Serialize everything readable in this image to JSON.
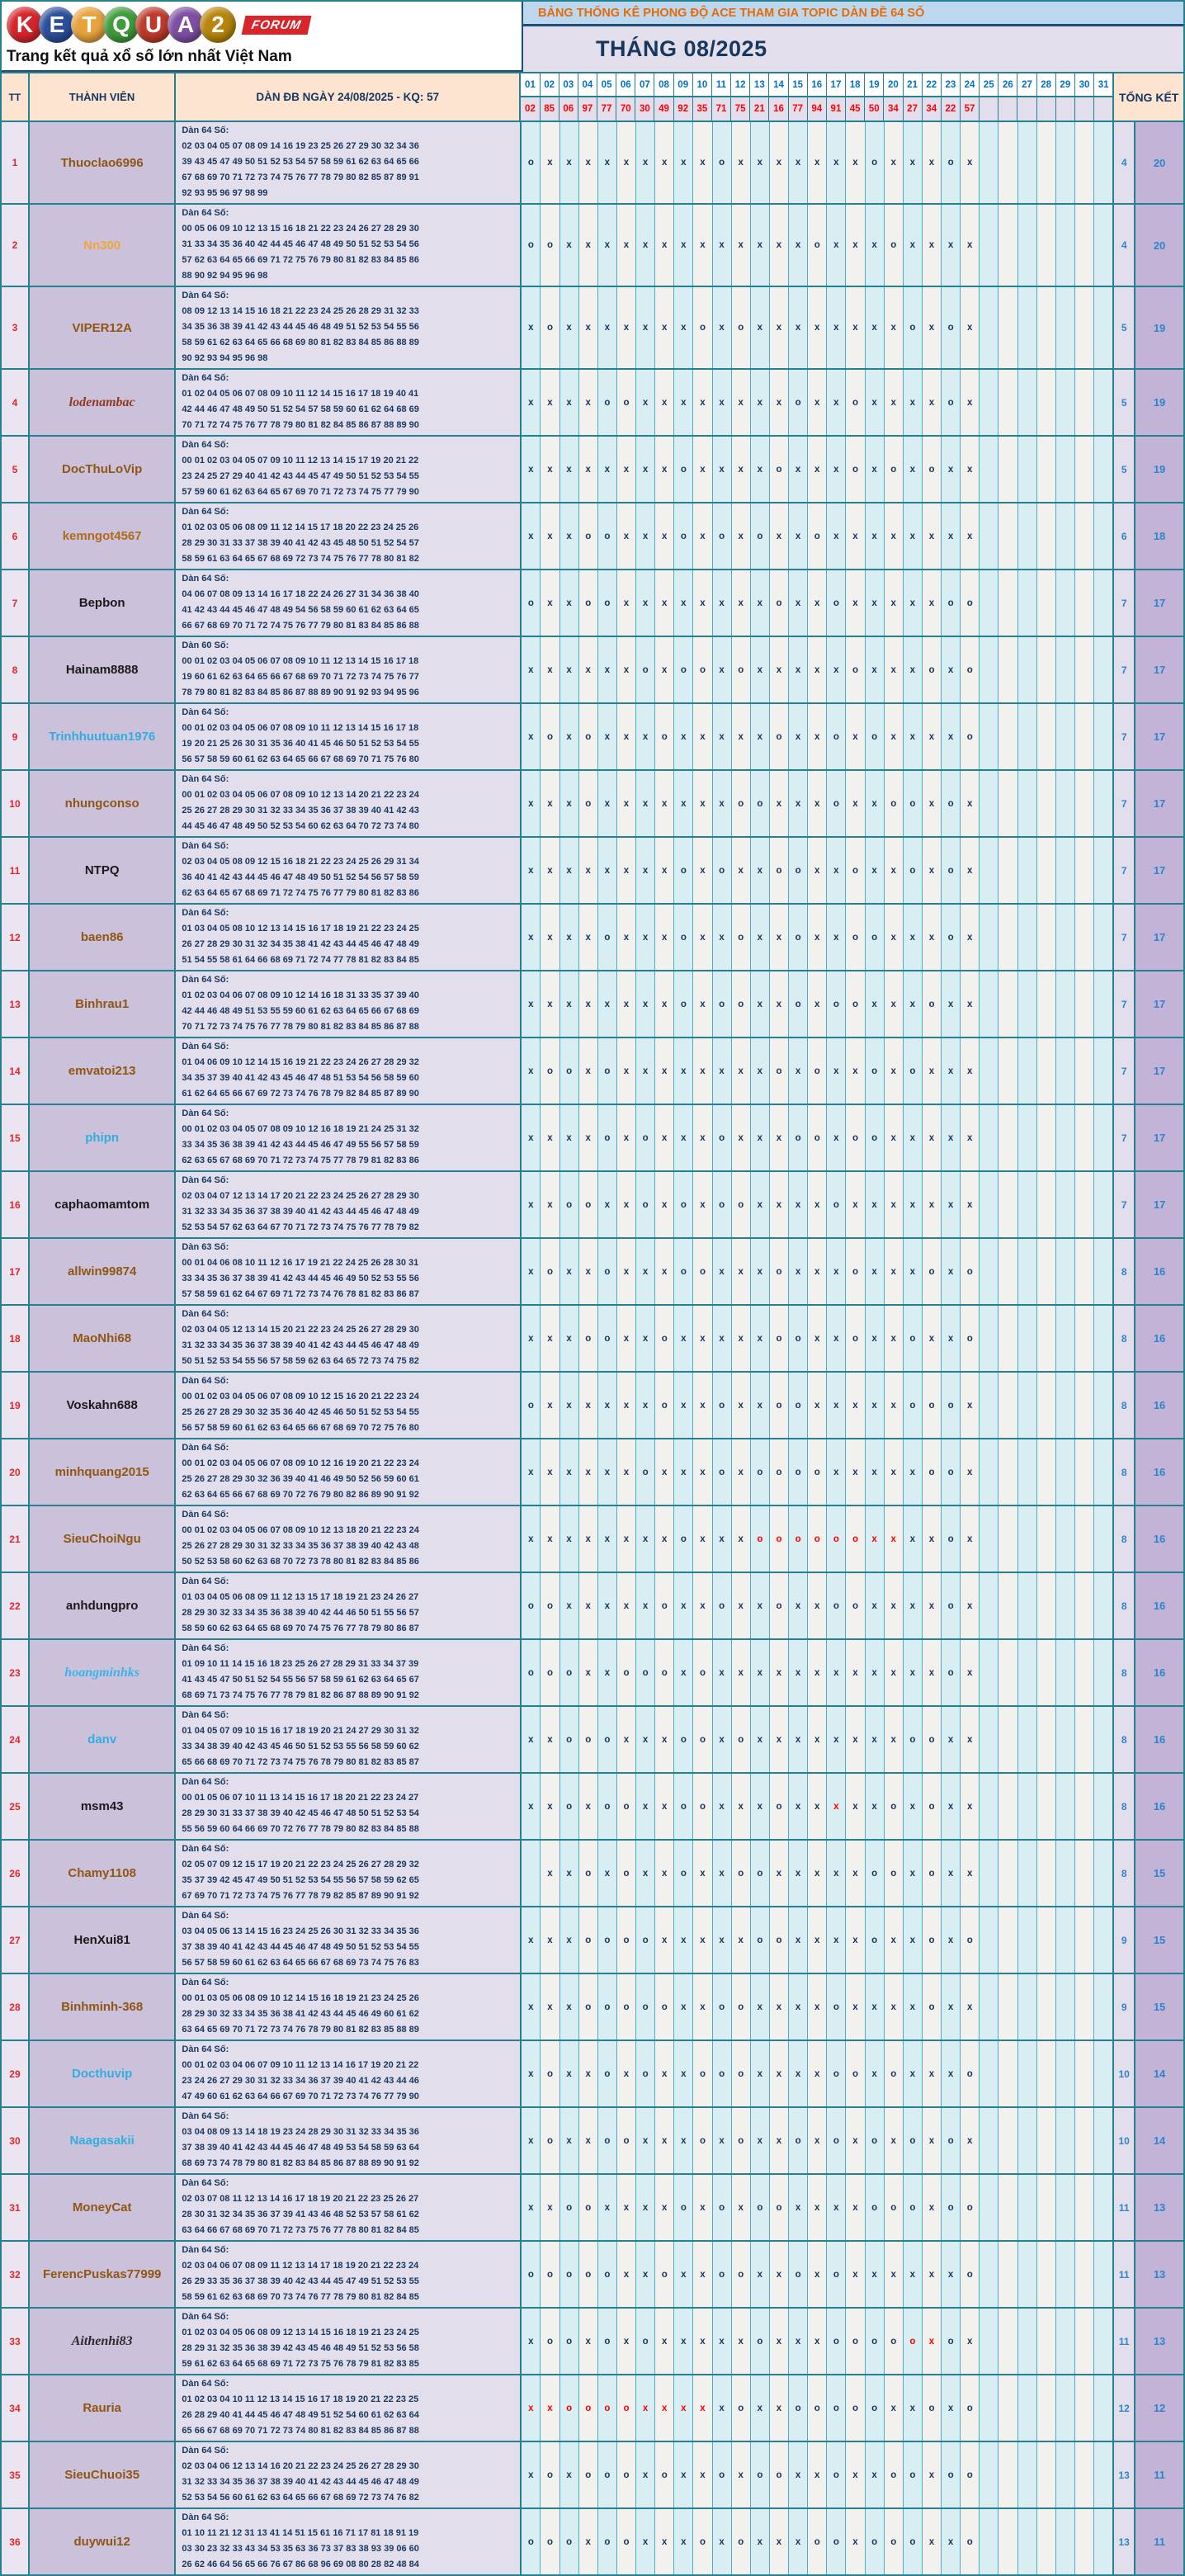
{
  "logo": {
    "letters": [
      {
        "ch": "K",
        "color": "#D6252B"
      },
      {
        "ch": "E",
        "color": "#2B4F9E"
      },
      {
        "ch": "T",
        "color": "#E8A33D"
      },
      {
        "ch": "Q",
        "color": "#3F9C3A"
      },
      {
        "ch": "U",
        "color": "#C03A2B"
      },
      {
        "ch": "A",
        "color": "#7E4FA3"
      },
      {
        "ch": "2",
        "color": "#B8860B"
      }
    ],
    "forum": "FORUM",
    "slogan": "Trang kết quả xổ số lớn nhất Việt Nam"
  },
  "header": {
    "banner": "BẢNG THỐNG KÊ PHONG ĐỘ ACE THAM GIA TOPIC DÀN ĐỀ 64 SỐ",
    "month_title": "THÁNG 08/2025"
  },
  "table": {
    "col_tt": "TT",
    "col_member": "THÀNH VIÊN",
    "col_dan": "DÀN ĐB NGÀY 24/08/2025 - KQ: 57",
    "col_total": "TỔNG KẾT",
    "days": [
      "01",
      "02",
      "03",
      "04",
      "05",
      "06",
      "07",
      "08",
      "09",
      "10",
      "11",
      "12",
      "13",
      "14",
      "15",
      "16",
      "17",
      "18",
      "19",
      "20",
      "21",
      "22",
      "23",
      "24",
      "25",
      "26",
      "27",
      "28",
      "29",
      "30",
      "31"
    ],
    "results": [
      "02",
      "85",
      "06",
      "97",
      "77",
      "70",
      "30",
      "49",
      "92",
      "35",
      "71",
      "75",
      "21",
      "16",
      "77",
      "94",
      "91",
      "45",
      "50",
      "34",
      "27",
      "34",
      "22",
      "57",
      "",
      "",
      "",
      "",
      "",
      "",
      ""
    ],
    "rows": [
      {
        "tt": "1",
        "name": "Thuoclao6996",
        "color": "#8F5614",
        "italic": false,
        "label": "Dàn 64 Số:",
        "lines": [
          "02 03 04 05 07 08 09 14 16 19 23 25 26 27 29 30 32 34 36",
          "39 43 45 47 49 50 51 52 53 54 57 58 59 61 62 63 64 65 66",
          "67 68 69 70 71 72 73 74 75 76 77 78 79 80 82 85 87 89 91",
          "92 93 95 96 97 98 99"
        ],
        "marks": "oxxxxxxxxxoxxxxxxxoxxxox",
        "red": [],
        "t1": "4",
        "t2": "20"
      },
      {
        "tt": "2",
        "name": "Nn300",
        "color": "#EFA73C",
        "italic": false,
        "label": "Dàn 64 Số:",
        "lines": [
          "00 05 06 09 10 12 13 15 16 18 21 22 23 24 26 27 28 29 30",
          "31 33 34 35 36 40 42 44 45 46 47 48 49 50 51 52 53 54 56",
          "57 62 63 64 65 66 69 71 72 75 76 79 80 81 82 83 84 85 86",
          "88 90 92 94 95 96 98"
        ],
        "marks": "ooxxxxxxxxxxxxxoxxxoxxxx",
        "red": [],
        "t1": "4",
        "t2": "20"
      },
      {
        "tt": "3",
        "name": "VIPER12A",
        "color": "#8F5614",
        "italic": false,
        "label": "Dàn 64 Số:",
        "lines": [
          "08 09 12 13 14 15 16 18 21 22 23 24 25 26 28 29 31 32 33",
          "34 35 36 38 39 41 42 43 44 45 46 48 49 51 52 53 54 55 56",
          "58 59 61 62 63 64 65 66 68 69 80 81 82 83 84 85 86 88 89",
          "90 92 93 94 95 96 98"
        ],
        "marks": "xoxxxxxxxoxoxxxxxxxxoxox",
        "red": [],
        "t1": "5",
        "t2": "19"
      },
      {
        "tt": "4",
        "name": "lodenambac",
        "color": "#8F3A1E",
        "italic": true,
        "label": "Dàn 64 Số:",
        "lines": [
          "01 02 04 05 06 07 08 09 10 11 12 14 15 16 17 18 19 40 41",
          "42 44 46 47 48 49 50 51 52 54 57 58 59 60 61 62 64 68 69",
          "70 71 72 74 75 76 77 78 79 80 81 82 84 85 86 87 88 89 90"
        ],
        "marks": "xxxxooxxxxxxxxoxxoxxxxox",
        "red": [],
        "t1": "5",
        "t2": "19"
      },
      {
        "tt": "5",
        "name": "DocThuLoVip",
        "color": "#8F5614",
        "italic": false,
        "label": "Dàn 64 Số:",
        "lines": [
          "00 01 02 03 04 05 07 09 10 11 12 13 14 15 17 19 20 21 22",
          "23 24 25 27 29 40 41 42 43 44 45 47 49 50 51 52 53 54 55",
          "57 59 60 61 62 63 64 65 67 69 70 71 72 73 74 75 77 79 90"
        ],
        "marks": "xxxxxxxxoxxxxoxxxoxoxoxx",
        "red": [],
        "t1": "5",
        "t2": "19"
      },
      {
        "tt": "6",
        "name": "kemngot4567",
        "color": "#B06A1B",
        "italic": false,
        "label": "Dàn 64 Số:",
        "lines": [
          "01 02 03 05 06 08 09 11 12 14 15 17 18 20 22 23 24 25 26",
          "28 29 30 31 33 37 38 39 40 41 42 43 45 48 50 51 52 54 57",
          "58 59 61 63 64 65 67 68 69 72 73 74 75 76 77 78 80 81 82"
        ],
        "marks": "xxxooxxxoxoxoxxoxxxxxxxx",
        "red": [],
        "t1": "6",
        "t2": "18"
      },
      {
        "tt": "7",
        "name": "Bepbon",
        "color": "#1A1A1A",
        "italic": false,
        "label": "Dàn 64 Số:",
        "lines": [
          "04 06 07 08 09 13 14 16 17 18 22 24 26 27 31 34 36 38 40",
          "41 42 43 44 45 46 47 48 49 54 56 58 59 60 61 62 63 64 65",
          "66 67 68 69 70 71 72 74 75 76 77 79 80 81 83 84 85 86 88"
        ],
        "marks": "oxxooxxxxxxxxoxxoxxxxxoo",
        "red": [],
        "t1": "7",
        "t2": "17"
      },
      {
        "tt": "8",
        "name": "Hainam8888",
        "color": "#1A1A1A",
        "italic": false,
        "label": "Dàn 60 Số:",
        "lines": [
          "00 01 02 03 04 05 06 07 08 09 10 11 12 13 14 15 16 17 18",
          "19 60 61 62 63 64 65 66 67 68 69 70 71 72 73 74 75 76 77",
          "78 79 80 81 82 83 84 85 86 87 88 89 90 91 92 93 94 95 96"
        ],
        "marks": "xxxxxxoxooxoxxxxxoxxxoxo",
        "red": [],
        "t1": "7",
        "t2": "17"
      },
      {
        "tt": "9",
        "name": "Trinhhuutuan1976",
        "color": "#33ADE0",
        "italic": false,
        "label": "Dàn 64 Số:",
        "lines": [
          "00 01 02 03 04 05 06 07 08 09 10 11 12 13 14 15 16 17 18",
          "19 20 21 25 26 30 31 35 36 40 41 45 46 50 51 52 53 54 55",
          "56 57 58 59 60 61 62 63 64 65 66 67 68 69 70 71 75 76 80"
        ],
        "marks": "xoxoxxxoxxxxxoxxoxoxxxxo",
        "red": [],
        "t1": "7",
        "t2": "17"
      },
      {
        "tt": "10",
        "name": "nhungconso",
        "color": "#8F5614",
        "italic": false,
        "label": "Dàn 64 Số:",
        "lines": [
          "00 01 02 03 04 05 06 07 08 09 10 12 13 14 20 21 22 23 24",
          "25 26 27 28 29 30 31 32 33 34 35 36 37 38 39 40 41 42 43",
          "44 45 46 47 48 49 50 52 53 54 60 62 63 64 70 72 73 74 80"
        ],
        "marks": "xxxoxxxxxxxooxxxoxxooxox",
        "red": [],
        "t1": "7",
        "t2": "17"
      },
      {
        "tt": "11",
        "name": "NTPQ",
        "color": "#1A1A1A",
        "italic": false,
        "label": "Dàn 64 Số:",
        "lines": [
          "02 03 04 05 08 09 12 15 16 18 21 22 23 24 25 26 29 31 34",
          "36 40 41 42 43 44 45 46 47 48 49 50 51 52 54 56 57 58 59",
          "62 63 64 65 67 68 69 71 72 74 75 76 77 79 80 81 82 83 86"
        ],
        "marks": "xxxxxxxxoxoxxooxxoxxoxox",
        "red": [],
        "t1": "7",
        "t2": "17"
      },
      {
        "tt": "12",
        "name": "baen86",
        "color": "#8F5614",
        "italic": false,
        "label": "Dàn 64 Số:",
        "lines": [
          "01 03 04 05 08 10 12 13 14 15 16 17 18 19 21 22 23 24 25",
          "26 27 28 29 30 31 32 34 35 38 41 42 43 44 45 46 47 48 49",
          "51 54 55 58 61 64 66 68 69 71 72 74 77 78 81 82 83 84 85"
        ],
        "marks": "xxxxoxxxoxxoxxoxxooxxxox",
        "red": [],
        "t1": "7",
        "t2": "17"
      },
      {
        "tt": "13",
        "name": "Binhrau1",
        "color": "#8F5614",
        "italic": false,
        "label": "Dàn 64 Số:",
        "lines": [
          "01 02 03 04 06 07 08 09 10 12 14 16 18 31 33 35 37 39 40",
          "42 44 46 48 49 51 53 55 59 60 61 62 63 64 65 66 67 68 69",
          "70 71 72 73 74 75 76 77 78 79 80 81 82 83 84 85 86 87 88"
        ],
        "marks": "xxxxxxxxoxooxxoxooxxxoxx",
        "red": [],
        "t1": "7",
        "t2": "17"
      },
      {
        "tt": "14",
        "name": "emvatoi213",
        "color": "#8F5614",
        "italic": false,
        "label": "Dàn 64 Số:",
        "lines": [
          "01 04 06 09 10 12 14 15 16 19 21 22 23 24 26 27 28 29 32",
          "34 35 37 39 40 41 42 43 45 46 47 48 51 53 54 56 58 59 60",
          "61 62 64 65 66 67 69 72 73 74 76 78 79 82 84 85 87 89 90"
        ],
        "marks": "xooxoxxxxxxxxoxoxxoxoxxx",
        "red": [],
        "t1": "7",
        "t2": "17"
      },
      {
        "tt": "15",
        "name": "phipn",
        "color": "#33ADE0",
        "italic": false,
        "label": "Dàn 64 Số:",
        "lines": [
          "00 01 02 03 04 05 07 08 09 10 12 16 18 19 21 24 25 31 32",
          "33 34 35 36 38 39 41 42 43 44 45 46 47 49 55 56 57 58 59",
          "62 63 65 67 68 69 70 71 72 73 74 75 77 78 79 81 82 83 86"
        ],
        "marks": "xxxxoxoxxxoxxxooxooxxxxx",
        "red": [],
        "t1": "7",
        "t2": "17"
      },
      {
        "tt": "16",
        "name": "caphaomamtom",
        "color": "#1A1A1A",
        "italic": false,
        "label": "Dàn 64 Số:",
        "lines": [
          "02 03 04 07 12 13 14 17 20 21 22 23 24 25 26 27 28 29 30",
          "31 32 33 34 35 36 37 38 39 40 41 42 43 44 45 46 47 48 49",
          "52 53 54 57 62 63 64 67 70 71 72 73 74 75 76 77 78 79 82"
        ],
        "marks": "xxooxxoxoxooxxxxoxxxxxxx",
        "red": [],
        "t1": "7",
        "t2": "17"
      },
      {
        "tt": "17",
        "name": "allwin99874",
        "color": "#8F5614",
        "italic": false,
        "label": "Dàn 63 Số:",
        "lines": [
          "00 01 04 06 08 10 11 12 16 17 19 21 22 24 25 26 28 30 31",
          "33 34 35 36 37 38 39 41 42 43 44 45 46 49 50 52 53 55 56",
          "57 58 59 61 62 64 67 69 71 72 73 74 76 78 81 82 83 86 87"
        ],
        "marks": "xoxxoxxxooxxxoxxxoxxxoxo",
        "red": [],
        "t1": "8",
        "t2": "16"
      },
      {
        "tt": "18",
        "name": "MaoNhi68",
        "color": "#8F5614",
        "italic": false,
        "label": "Dàn 64 Số:",
        "lines": [
          "02 03 04 05 12 13 14 15 20 21 22 23 24 25 26 27 28 29 30",
          "31 32 33 34 35 36 37 38 39 40 41 42 43 44 45 46 47 48 49",
          "50 51 52 53 54 55 56 57 58 59 62 63 64 65 72 73 74 75 82"
        ],
        "marks": "xxxooxxoxxxxxooxxoxxoxxo",
        "red": [],
        "t1": "8",
        "t2": "16"
      },
      {
        "tt": "19",
        "name": "Voskahn688",
        "color": "#1A1A1A",
        "italic": false,
        "label": "Dàn 64 Số:",
        "lines": [
          "00 01 02 03 04 05 06 07 08 09 10 12 15 16 20 21 22 23 24",
          "25 26 27 28 29 30 32 35 36 40 42 45 46 50 51 52 53 54 55",
          "56 57 58 59 60 61 62 63 64 65 66 67 68 69 70 72 75 76 80"
        ],
        "marks": "oxxxxxxoxxoxxooxxxxxooox",
        "red": [],
        "t1": "8",
        "t2": "16"
      },
      {
        "tt": "20",
        "name": "minhquang2015",
        "color": "#8F5614",
        "italic": false,
        "label": "Dàn 64 Số:",
        "lines": [
          "00 01 02 03 04 05 06 07 08 09 10 12 16 19 20 21 22 23 24",
          "25 26 27 28 29 30 32 36 39 40 41 46 49 50 52 56 59 60 61",
          "62 63 64 65 66 67 68 69 70 72 76 79 80 82 86 89 90 91 92"
        ],
        "marks": "xxxxxxoxxxoxooooxxxxxoox",
        "red": [],
        "t1": "8",
        "t2": "16"
      },
      {
        "tt": "21",
        "name": "SieuChoiNgu",
        "color": "#8F5614",
        "italic": false,
        "label": "Dàn 64 Số:",
        "lines": [
          "00 01 02 03 04 05 06 07 08 09 10 12 13 18 20 21 22 23 24",
          "25 26 27 28 29 30 31 32 33 34 35 36 37 38 39 40 42 43 48",
          "50 52 53 58 60 62 63 68 70 72 73 78 80 81 82 83 84 85 86"
        ],
        "marks": "xxxxxxxxoxxxooooooxxxxox",
        "red": [
          13,
          14,
          15,
          16,
          17,
          18,
          19,
          20
        ],
        "t1": "8",
        "t2": "16"
      },
      {
        "tt": "22",
        "name": "anhdungpro",
        "color": "#1A1A1A",
        "italic": false,
        "label": "Dàn 64 Số:",
        "lines": [
          "01 03 04 05 06 08 09 11 12 13 15 17 18 19 21 23 24 26 27",
          "28 29 30 32 33 34 35 36 38 39 40 42 44 46 50 51 55 56 57",
          "58 59 60 62 63 64 65 68 69 70 74 75 76 77 78 79 80 86 87"
        ],
        "marks": "ooxxxxxoxxoxxoxxooxxxxox",
        "red": [],
        "t1": "8",
        "t2": "16"
      },
      {
        "tt": "23",
        "name": "hoangminhks",
        "color": "#3BB4E8",
        "italic": true,
        "label": "Dàn 64 Số:",
        "lines": [
          "01 09 10 11 14 15 16 18 23 25 26 27 28 29 31 33 34 37 39",
          "41 43 45 47 50 51 52 54 55 56 57 58 59 61 62 63 64 65 67",
          "68 69 71 73 74 75 76 77 78 79 81 82 86 87 88 89 90 91 92"
        ],
        "marks": "oooxxoooxoxxxxxxxxxxxxox",
        "red": [],
        "t1": "8",
        "t2": "16"
      },
      {
        "tt": "24",
        "name": "danv",
        "color": "#33ADE0",
        "italic": false,
        "label": "Dàn 64 Số:",
        "lines": [
          "01 04 05 07 09 10 15 16 17 18 19 20 21 24 27 29 30 31 32",
          "33 34 38 39 40 42 43 45 46 50 51 52 53 55 56 58 59 60 62",
          "65 66 68 69 70 71 72 73 74 75 76 78 79 80 81 82 83 85 87"
        ],
        "marks": "xxoooxxxooxoxxxxxxxxooxx",
        "red": [],
        "t1": "8",
        "t2": "16"
      },
      {
        "tt": "25",
        "name": "msm43",
        "color": "#1A1A1A",
        "italic": false,
        "label": "Dàn 64 Số:",
        "lines": [
          "00 01 05 06 07 10 11 13 14 15 16 17 18 20 21 22 23 24 27",
          "28 29 30 31 33 37 38 39 40 42 45 46 47 48 50 51 52 53 54",
          "55 56 59 60 64 66 69 70 72 76 77 78 79 80 82 83 84 85 88"
        ],
        "marks": "xxoxooxxooxxxoxxxxxoxoxx",
        "red": [
          17
        ],
        "t1": "8",
        "t2": "16"
      },
      {
        "tt": "26",
        "name": "Chamy1108",
        "color": "#8F5614",
        "italic": false,
        "label": "Dàn 64 Số:",
        "lines": [
          "02 05 07 09 12 15 17 19 20 21 22 23 24 25 26 27 28 29 32",
          "35 37 39 42 45 47 49 50 51 52 53 54 55 56 57 58 59 62 65",
          "67 69 70 71 72 73 74 75 76 77 78 79 82 85 87 89 90 91 92"
        ],
        "marks": "-xxoxoxxoxxooxxxxxooxoxx",
        "red": [],
        "t1": "8",
        "t2": "15"
      },
      {
        "tt": "27",
        "name": "HenXui81",
        "color": "#1A1A1A",
        "italic": false,
        "label": "Dàn 64 Số:",
        "lines": [
          "03 04 05 06 13 14 15 16 23 24 25 26 30 31 32 33 34 35 36",
          "37 38 39 40 41 42 43 44 45 46 47 48 49 50 51 52 53 54 55",
          "56 57 58 59 60 61 62 63 64 65 66 67 68 69 73 74 75 76 83"
        ],
        "marks": "xxxooooxxxxxooxxxxoxxoxo",
        "red": [],
        "t1": "9",
        "t2": "15"
      },
      {
        "tt": "28",
        "name": "Binhminh-368",
        "color": "#8F5614",
        "italic": false,
        "label": "Dàn 64 Số:",
        "lines": [
          "00 01 03 05 06 08 09 10 12 14 15 16 18 19 21 23 24 25 26",
          "28 29 30 32 33 34 35 36 38 41 42 43 44 45 46 49 60 61 62",
          "63 64 65 69 70 71 72 73 74 76 78 79 80 81 82 83 85 88 89"
        ],
        "marks": "xxxoooooxxooxxxxoxxxxoxx",
        "red": [],
        "t1": "9",
        "t2": "15"
      },
      {
        "tt": "29",
        "name": "Docthuvip",
        "color": "#33ADE0",
        "italic": false,
        "label": "Dàn 64 Số:",
        "lines": [
          "00 01 02 03 04 06 07 09 10 11 12 13 14 16 17 19 20 21 22",
          "23 24 26 27 29 30 31 32 33 34 36 37 39 40 41 42 43 44 46",
          "47 49 60 61 62 63 64 66 67 69 70 71 72 73 74 76 77 79 90"
        ],
        "marks": "xoxxoxoxxoooxxxxooxoxxxo",
        "red": [],
        "t1": "10",
        "t2": "14"
      },
      {
        "tt": "30",
        "name": "Naagasakii",
        "color": "#33ADE0",
        "italic": false,
        "label": "Dàn 64 Số:",
        "lines": [
          "03 04 08 09 13 14 18 19 23 24 28 29 30 31 32 33 34 35 36",
          "37 38 39 40 41 42 43 44 45 46 47 48 49 53 54 58 59 63 64",
          "68 69 73 74 78 79 80 81 82 83 84 85 86 87 88 89 90 91 92"
        ],
        "marks": "xoxxooxxxoxoxxoxoxoxoxox",
        "red": [],
        "t1": "10",
        "t2": "14"
      },
      {
        "tt": "31",
        "name": "MoneyCat",
        "color": "#8F5614",
        "italic": false,
        "label": "Dàn 64 Số:",
        "lines": [
          "02 03 07 08 11 12 13 14 16 17 18 19 20 21 22 23 25 26 27",
          "28 30 31 32 34 35 36 37 39 41 43 46 48 52 53 57 58 61 62",
          "63 64 66 67 68 69 70 71 72 73 75 76 77 78 80 81 82 84 85"
        ],
        "marks": "xxooxxxxoxoxooxxxxoooxoo",
        "red": [],
        "t1": "11",
        "t2": "13"
      },
      {
        "tt": "32",
        "name": "FerencPuskas77999",
        "color": "#8F5614",
        "italic": false,
        "label": "Dàn 64 Số:",
        "lines": [
          "02 03 04 06 07 08 09 11 12 13 14 17 18 19 20 21 22 23 24",
          "26 29 33 35 36 37 38 39 40 42 43 44 45 47 49 51 52 53 55",
          "58 59 61 62 63 68 69 70 73 74 76 77 78 79 80 81 82 84 85"
        ],
        "marks": "oooooxxoxxooxxoxoxxxxxxo",
        "red": [],
        "t1": "11",
        "t2": "13"
      },
      {
        "tt": "33",
        "name": "Aithenhi83",
        "color": "#2B2B2B",
        "italic": true,
        "label": "Dàn 64 Số:",
        "lines": [
          "01 02 03 04 05 06 08 09 12 13 14 15 16 18 19 21 23 24 25",
          "28 29 31 32 35 36 38 39 42 43 45 46 48 49 51 52 53 56 58",
          "59 61 62 63 64 65 68 69 71 72 73 75 76 78 79 81 82 83 85"
        ],
        "marks": "xooxoxoxxxxxoxxxoooooxox",
        "red": [
          21,
          22
        ],
        "t1": "11",
        "t2": "13"
      },
      {
        "tt": "34",
        "name": "Rauria",
        "color": "#8F5614",
        "italic": false,
        "label": "Dàn 64 Số:",
        "lines": [
          "01 02 03 04 10 11 12 13 14 15 16 17 18 19 20 21 22 23 25",
          "26 28 29 40 41 44 45 46 47 48 49 51 52 54 60 61 62 63 64",
          "65 66 67 68 69 70 71 72 73 74 80 81 82 83 84 85 86 87 88"
        ],
        "marks": "xxooooxxxxxoxxoooooxxoxo",
        "red": [
          1,
          2,
          3,
          4,
          5,
          6,
          7,
          8,
          9,
          10
        ],
        "t1": "12",
        "t2": "12"
      },
      {
        "tt": "35",
        "name": "SieuChuoi35",
        "color": "#8F5614",
        "italic": false,
        "label": "Dàn 64 Số:",
        "lines": [
          "02 03 04 06 12 13 14 16 20 21 22 23 24 25 26 27 28 29 30",
          "31 32 33 34 35 36 37 38 39 40 41 42 43 44 45 46 47 48 49",
          "52 53 54 56 60 61 62 63 64 65 66 67 68 69 72 73 74 76 82"
        ],
        "marks": "xoxoooxoxxoxooxxoxxooxoo",
        "red": [],
        "t1": "13",
        "t2": "11"
      },
      {
        "tt": "36",
        "name": "duywui12",
        "color": "#8F5614",
        "italic": false,
        "label": "Dàn 64 Số:",
        "lines": [
          "01 10 11 21 12 31 13 41 14 51 15 61 16 71 17 81 18 91 19",
          "03 30 23 32 33 43 34 53 35 63 36 73 37 83 38 93 39 06 60",
          "26 62 46 64 56 65 66 76 67 86 68 96 69 08 80 28 82 48 84"
        ],
        "marks": "oooxooxxxoxoxxxooxoooxxo",
        "red": [],
        "t1": "13",
        "t2": "11"
      }
    ]
  }
}
